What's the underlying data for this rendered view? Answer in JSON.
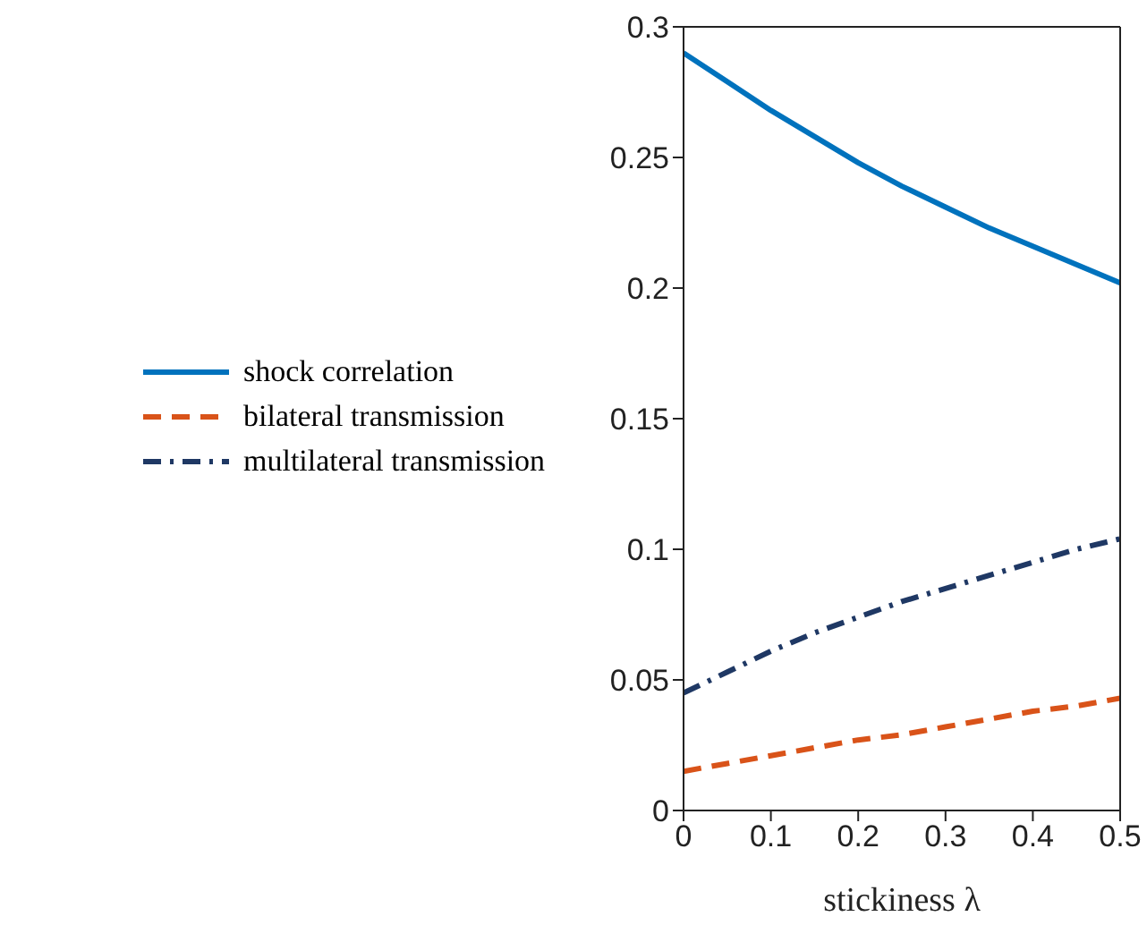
{
  "chart_data": {
    "type": "line",
    "xlabel": "stickiness λ",
    "x": [
      0,
      0.05,
      0.1,
      0.15,
      0.2,
      0.25,
      0.3,
      0.35,
      0.4,
      0.45,
      0.5
    ],
    "series": [
      {
        "name": "shock correlation",
        "color": "#0072bd",
        "line_style": "solid",
        "values": [
          0.29,
          0.279,
          0.268,
          0.258,
          0.248,
          0.239,
          0.231,
          0.223,
          0.216,
          0.209,
          0.202
        ]
      },
      {
        "name": "bilateral transmission",
        "color": "#d95319",
        "line_style": "dashed",
        "values": [
          0.015,
          0.018,
          0.021,
          0.024,
          0.027,
          0.029,
          0.032,
          0.035,
          0.038,
          0.04,
          0.043
        ]
      },
      {
        "name": "multilateral transmission",
        "color": "#1f3864",
        "line_style": "dashdot",
        "values": [
          0.045,
          0.053,
          0.061,
          0.068,
          0.074,
          0.08,
          0.085,
          0.09,
          0.095,
          0.1,
          0.104
        ]
      }
    ],
    "xlim": [
      0,
      0.5
    ],
    "xticks": [
      0,
      0.1,
      0.2,
      0.3,
      0.4,
      0.5
    ],
    "ylim": [
      0,
      0.3
    ],
    "yticks": [
      0,
      0.05,
      0.1,
      0.15,
      0.2,
      0.25,
      0.3
    ],
    "grid": false,
    "legend": "left",
    "marker": "none"
  }
}
